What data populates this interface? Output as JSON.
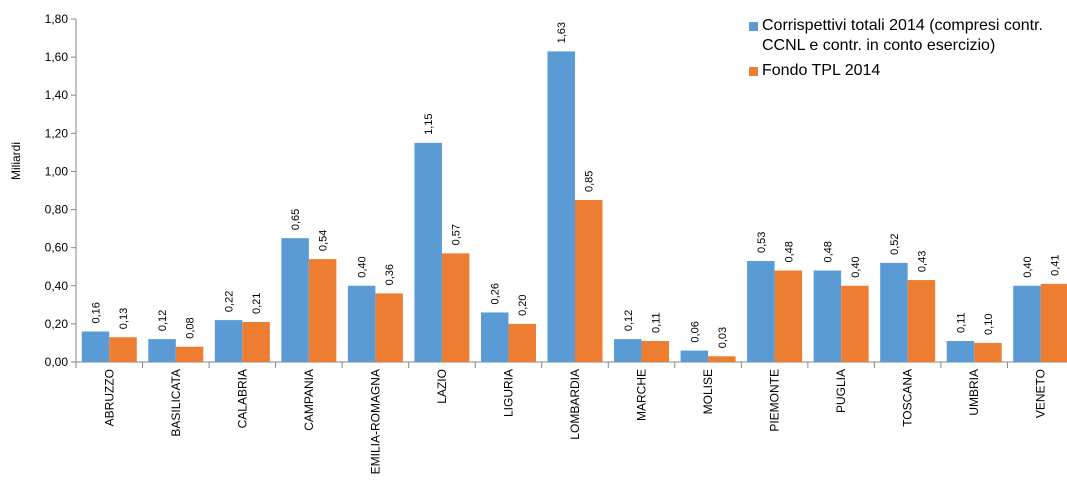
{
  "chart_data": {
    "type": "bar",
    "ylabel": "Miliardi",
    "ylim": [
      0,
      1.8
    ],
    "yticks": [
      "0,00",
      "0,20",
      "0,40",
      "0,60",
      "0,80",
      "1,00",
      "1,20",
      "1,40",
      "1,60",
      "1,80"
    ],
    "categories": [
      "ABRUZZO",
      "BASILICATA",
      "CALABRIA",
      "CAMPANIA",
      "EMILIA-ROMAGNA",
      "LAZIO",
      "LIGURIA",
      "LOMBARDIA",
      "MARCHE",
      "MOLISE",
      "PIEMONTE",
      "PUGLIA",
      "TOSCANA",
      "UMBRIA",
      "VENETO"
    ],
    "series": [
      {
        "name": "Corrispettivi totali 2014 (compresi contr. CCNL e contr. in conto esercizio)",
        "color": "#5B9BD5",
        "values": [
          0.16,
          0.12,
          0.22,
          0.65,
          0.4,
          1.15,
          0.26,
          1.63,
          0.12,
          0.06,
          0.53,
          0.48,
          0.52,
          0.11,
          0.4
        ],
        "labels": [
          "0,16",
          "0,12",
          "0,22",
          "0,65",
          "0,40",
          "1,15",
          "0,26",
          "1,63",
          "0,12",
          "0,06",
          "0,53",
          "0,48",
          "0,52",
          "0,11",
          "0,40"
        ]
      },
      {
        "name": "Fondo TPL 2014",
        "color": "#ED7D31",
        "values": [
          0.13,
          0.08,
          0.21,
          0.54,
          0.36,
          0.57,
          0.2,
          0.85,
          0.11,
          0.03,
          0.48,
          0.4,
          0.43,
          0.1,
          0.41
        ],
        "labels": [
          "0,13",
          "0,08",
          "0,21",
          "0,54",
          "0,36",
          "0,57",
          "0,20",
          "0,85",
          "0,11",
          "0,03",
          "0,48",
          "0,40",
          "0,43",
          "0,10",
          "0,41"
        ]
      }
    ],
    "legend_position": "top-right",
    "grid": false
  }
}
